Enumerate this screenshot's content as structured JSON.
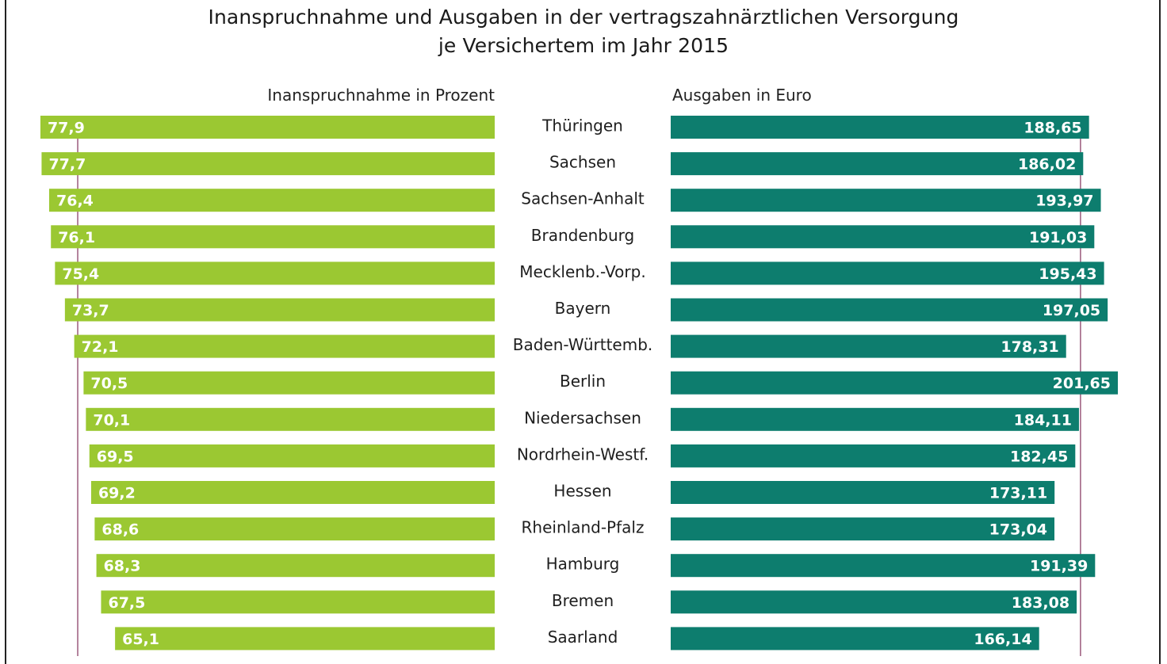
{
  "chart_data": {
    "type": "bar",
    "title": "Inanspruchnahme und Ausgaben in der vertragszahnärztlichen Versorgung",
    "subtitle": "je Versichertem im Jahr 2015",
    "orientation": "horizontal-butterfly",
    "categories": [
      "Thüringen",
      "Sachsen",
      "Sachsen-Anhalt",
      "Brandenburg",
      "Mecklenb.-Vorp.",
      "Bayern",
      "Baden-Württemb.",
      "Berlin",
      "Niedersachsen",
      "Nordrhein-Westf.",
      "Hessen",
      "Rheinland-Pfalz",
      "Hamburg",
      "Bremen",
      "Saarland"
    ],
    "series": [
      {
        "name": "Inanspruchnahme in Prozent",
        "side": "left",
        "color": "#9bc832",
        "values": [
          77.9,
          77.7,
          76.4,
          76.1,
          75.4,
          73.7,
          72.1,
          70.5,
          70.1,
          69.5,
          69.2,
          68.6,
          68.3,
          67.5,
          65.1
        ],
        "labels": [
          "77,9",
          "77,7",
          "76,4",
          "76,1",
          "75,4",
          "73,7",
          "72,1",
          "70,5",
          "70,1",
          "69,5",
          "69,2",
          "68,6",
          "68,3",
          "67,5",
          "65,1"
        ],
        "reference_line": 71.5,
        "reference_color": "#9b5a7c"
      },
      {
        "name": "Ausgaben in Euro",
        "side": "right",
        "color": "#0d7d6e",
        "values": [
          188.65,
          186.02,
          193.97,
          191.03,
          195.43,
          197.05,
          178.31,
          201.65,
          184.11,
          182.45,
          173.11,
          173.04,
          191.39,
          183.08,
          166.14
        ],
        "labels": [
          "188,65",
          "186,02",
          "193,97",
          "191,03",
          "195,43",
          "197,05",
          "178,31",
          "201,65",
          "184,11",
          "182,45",
          "173,11",
          "173,04",
          "191,39",
          "183,08",
          "166,14"
        ],
        "reference_line": 184.8,
        "reference_color": "#9b5a7c"
      }
    ],
    "grid": false,
    "legend": "none"
  },
  "header": {
    "title_line1": "Inanspruchnahme und Ausgaben in der vertragszahnärztlichen Versorgung",
    "title_line2": "je Versichertem im Jahr 2015",
    "left_axis_label": "Inanspruchnahme in Prozent",
    "right_axis_label": "Ausgaben in Euro"
  }
}
